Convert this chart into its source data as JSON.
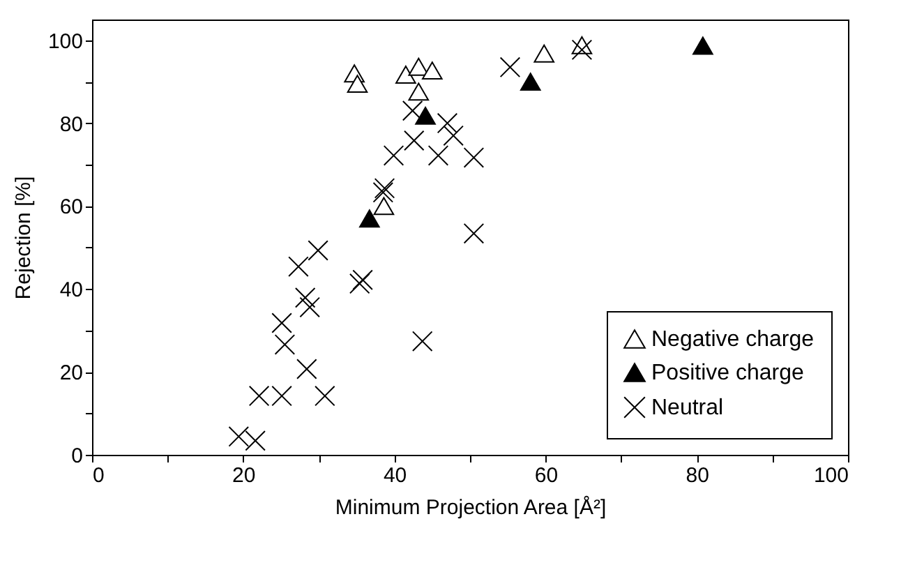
{
  "chart_data": {
    "type": "scatter",
    "xlabel": "Minimum Projection Area [Å²]",
    "ylabel": "Rejection [%]",
    "xlim": [
      0,
      100
    ],
    "ylim": [
      0,
      105
    ],
    "xticks": [
      0,
      {
        "value": 10,
        "label": null
      },
      20,
      {
        "value": 30,
        "label": null
      },
      40,
      {
        "value": 50,
        "label": null
      },
      60,
      {
        "value": 70,
        "label": null
      },
      80,
      {
        "value": 90,
        "label": null
      },
      100
    ],
    "yticks": [
      0,
      {
        "value": 10,
        "label": null
      },
      20,
      {
        "value": 30,
        "label": null
      },
      40,
      {
        "value": 50,
        "label": null
      },
      60,
      {
        "value": 70,
        "label": null
      },
      80,
      {
        "value": 90,
        "label": null
      },
      100
    ],
    "grid": false,
    "legend": "bottom right",
    "series": [
      {
        "name": "Negative charge",
        "color": "#ffffff",
        "marker": "triangle",
        "x": [
          34.7,
          35.1,
          41.5,
          43.2,
          45.0,
          43.2,
          38.6,
          59.8,
          64.8
        ],
        "values": [
          92,
          89.5,
          91.7,
          93.6,
          92.7,
          87.6,
          60,
          96.8,
          98.8
        ]
      },
      {
        "name": "Positive charge",
        "color": "#000000",
        "marker": "triangle",
        "x": [
          36.7,
          44.1,
          58.0,
          80.8
        ],
        "values": [
          57,
          81.8,
          90,
          98.7
        ]
      },
      {
        "name": "Neutral",
        "color": "#000000",
        "marker": "cross",
        "x": [
          42.4,
          47.0,
          47.8,
          42.6,
          39.9,
          45.8,
          50.5,
          38.7,
          38.5,
          50.5,
          55.3,
          64.8,
          29.9,
          27.3,
          28.2,
          28.8,
          35.4,
          35.8,
          25.1,
          25.5,
          28.4,
          43.7,
          22.1,
          25.1,
          30.8,
          19.4,
          21.6
        ],
        "values": [
          83,
          80,
          77,
          75.8,
          72.2,
          72.2,
          71.7,
          64.3,
          63.3,
          53.4,
          93.5,
          97.7,
          49.3,
          45.4,
          37.9,
          35.6,
          41.3,
          42.2,
          31.8,
          26.6,
          20.7,
          27.4,
          14.2,
          14.2,
          14.2,
          4.4,
          3.4
        ]
      }
    ]
  }
}
